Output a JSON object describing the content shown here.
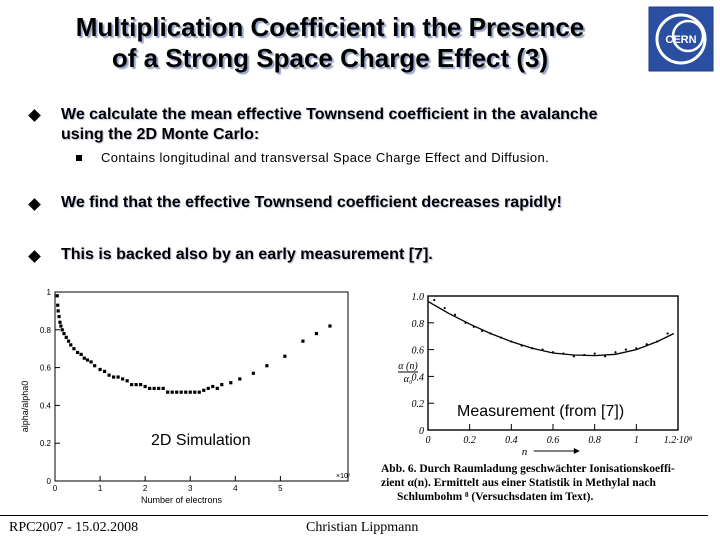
{
  "slide": {
    "title_line1": "Multiplication Coefficient in the Presence",
    "title_line2": "of a Strong Space Charge Effect (3)",
    "logo_text": "CERN",
    "bullets": [
      {
        "text_line1": "We calculate the mean effective Townsend coefficient in the avalanche",
        "text_line2": "using the 2D Monte Carlo:"
      },
      {
        "text": "We find that the effective Townsend coefficient decreases rapidly!"
      },
      {
        "text": "This is backed also by an early measurement [7]."
      }
    ],
    "sub_bullet": "Contains longitudinal and transversal Space Charge Effect and Diffusion.",
    "footer_left": "RPC2007 - 15.02.2008",
    "footer_center": "Christian Lippmann"
  },
  "chart_data": [
    {
      "type": "scatter",
      "label": "2D Simulation",
      "xlabel": "Number of electrons",
      "ylabel": "alpha/alpha0",
      "x_multiplier_label": "×10⁷",
      "xlim": [
        0,
        6.5
      ],
      "ylim": [
        0,
        1
      ],
      "xticks": [
        "0",
        "1",
        "2",
        "3",
        "4",
        "5"
      ],
      "yticks": [
        "0",
        "0.2",
        "0.4",
        "0.6",
        "0.8",
        "1"
      ],
      "points": [
        [
          0.05,
          0.98
        ],
        [
          0.06,
          0.93
        ],
        [
          0.07,
          0.9
        ],
        [
          0.09,
          0.87
        ],
        [
          0.11,
          0.84
        ],
        [
          0.13,
          0.82
        ],
        [
          0.16,
          0.8
        ],
        [
          0.2,
          0.78
        ],
        [
          0.25,
          0.76
        ],
        [
          0.3,
          0.74
        ],
        [
          0.35,
          0.72
        ],
        [
          0.42,
          0.7
        ],
        [
          0.5,
          0.68
        ],
        [
          0.58,
          0.67
        ],
        [
          0.65,
          0.65
        ],
        [
          0.72,
          0.64
        ],
        [
          0.8,
          0.63
        ],
        [
          0.88,
          0.61
        ],
        [
          1.0,
          0.59
        ],
        [
          1.1,
          0.58
        ],
        [
          1.2,
          0.56
        ],
        [
          1.3,
          0.55
        ],
        [
          1.4,
          0.55
        ],
        [
          1.5,
          0.54
        ],
        [
          1.6,
          0.53
        ],
        [
          1.7,
          0.51
        ],
        [
          1.8,
          0.51
        ],
        [
          1.9,
          0.51
        ],
        [
          2.0,
          0.5
        ],
        [
          2.1,
          0.49
        ],
        [
          2.2,
          0.49
        ],
        [
          2.3,
          0.49
        ],
        [
          2.4,
          0.49
        ],
        [
          2.5,
          0.47
        ],
        [
          2.6,
          0.47
        ],
        [
          2.7,
          0.47
        ],
        [
          2.8,
          0.47
        ],
        [
          2.9,
          0.47
        ],
        [
          3.0,
          0.47
        ],
        [
          3.1,
          0.47
        ],
        [
          3.2,
          0.47
        ],
        [
          3.3,
          0.48
        ],
        [
          3.4,
          0.49
        ],
        [
          3.5,
          0.5
        ],
        [
          3.6,
          0.49
        ],
        [
          3.7,
          0.51
        ],
        [
          3.9,
          0.52
        ],
        [
          4.1,
          0.54
        ],
        [
          4.4,
          0.57
        ],
        [
          4.7,
          0.61
        ],
        [
          5.1,
          0.66
        ],
        [
          5.5,
          0.74
        ],
        [
          5.8,
          0.78
        ],
        [
          6.1,
          0.82
        ]
      ]
    },
    {
      "type": "scatter",
      "label": "Measurement (from [7])",
      "xlabel": "n",
      "ylabel_line1": "α (n)",
      "ylabel_line2": "α₀",
      "xlim": [
        0,
        12
      ],
      "ylim": [
        0,
        1
      ],
      "xticks": [
        "0",
        "0.2",
        "0.4",
        "0.6",
        "0.8",
        "1",
        "1.2·10⁸"
      ],
      "yticks": [
        "0",
        "0.2",
        "0.4",
        "0.6",
        "0.8",
        "1.0"
      ],
      "curve": [
        [
          0,
          0.96
        ],
        [
          1,
          0.87
        ],
        [
          2,
          0.79
        ],
        [
          3,
          0.72
        ],
        [
          4,
          0.66
        ],
        [
          5,
          0.61
        ],
        [
          6,
          0.575
        ],
        [
          7,
          0.56
        ],
        [
          8,
          0.555
        ],
        [
          9,
          0.565
        ],
        [
          10,
          0.6
        ],
        [
          11,
          0.66
        ],
        [
          11.8,
          0.72
        ]
      ],
      "points": [
        [
          0.3,
          0.97
        ],
        [
          0.8,
          0.91
        ],
        [
          1.3,
          0.86
        ],
        [
          1.8,
          0.8
        ],
        [
          2.2,
          0.77
        ],
        [
          2.6,
          0.74
        ],
        [
          3.0,
          0.72
        ],
        [
          3.5,
          0.69
        ],
        [
          4.0,
          0.66
        ],
        [
          4.5,
          0.63
        ],
        [
          5.0,
          0.61
        ],
        [
          5.5,
          0.6
        ],
        [
          6.0,
          0.58
        ],
        [
          6.5,
          0.57
        ],
        [
          7.0,
          0.55
        ],
        [
          7.5,
          0.56
        ],
        [
          8.0,
          0.57
        ],
        [
          8.5,
          0.55
        ],
        [
          9.0,
          0.58
        ],
        [
          9.5,
          0.6
        ],
        [
          10.0,
          0.61
        ],
        [
          10.5,
          0.64
        ],
        [
          11.0,
          0.66
        ],
        [
          11.5,
          0.72
        ]
      ],
      "caption_line1": "Abb. 6.  Durch Raumladung geschwächter Ionisationskoeffi-",
      "caption_line2": "zient α(n).  Ermittelt aus einer Statistik in Methylal nach",
      "caption_line3": "Schlumbohm ⁸ (Versuchsdaten im Text)."
    }
  ]
}
